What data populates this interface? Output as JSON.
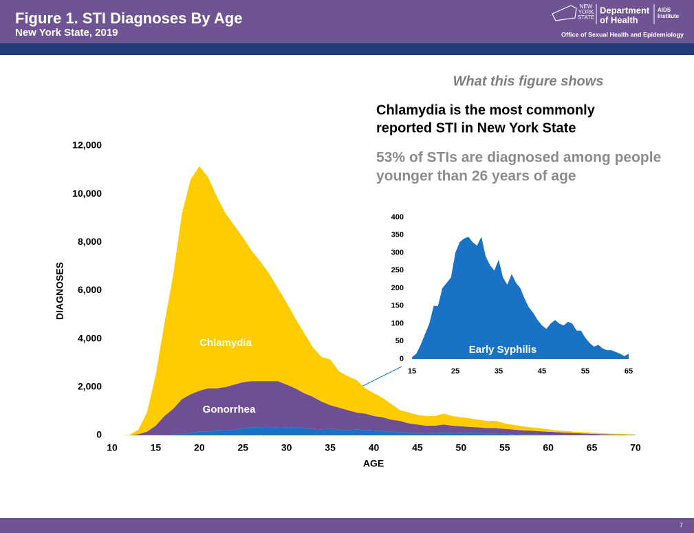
{
  "header": {
    "title": "Figure 1. STI Diagnoses By Age",
    "subtitle": "New York State, 2019",
    "logo": {
      "state": [
        "NEW",
        "YORK",
        "STATE"
      ],
      "department": [
        "Department",
        "of Health"
      ],
      "institute": [
        "AIDS",
        "Institute"
      ],
      "office": "Office of Sexual Health and Epidemiology"
    }
  },
  "sidebar": {
    "heading": "What this figure shows",
    "finding": [
      "Chlamydia is the most commonly",
      "reported STI in New York State"
    ],
    "note": [
      "53% of STIs are diagnosed among people",
      "younger than 26 years of age"
    ]
  },
  "page_number": "7",
  "chart_data": [
    {
      "type": "area",
      "stacked": true,
      "xlabel": "AGE",
      "ylabel": "DIAGNOSES",
      "x": [
        10,
        11,
        12,
        13,
        14,
        15,
        16,
        17,
        18,
        19,
        20,
        21,
        22,
        23,
        24,
        25,
        26,
        27,
        28,
        29,
        30,
        31,
        32,
        33,
        34,
        35,
        36,
        37,
        38,
        39,
        40,
        41,
        42,
        43,
        44,
        45,
        46,
        47,
        48,
        49,
        50,
        51,
        52,
        53,
        54,
        55,
        56,
        57,
        58,
        59,
        60,
        61,
        62,
        63,
        64,
        65,
        66,
        67,
        68,
        69,
        70
      ],
      "xlim": [
        10,
        70
      ],
      "xticks": [
        10,
        15,
        20,
        25,
        30,
        35,
        40,
        45,
        50,
        55,
        60,
        65,
        70
      ],
      "ylim": [
        0,
        12000
      ],
      "yticks": [
        0,
        {
          "value": 2000,
          "label": "2,000"
        },
        {
          "value": 4000,
          "label": "4,000"
        },
        {
          "value": 6000,
          "label": "6,000"
        },
        {
          "value": 8000,
          "label": "8,000"
        },
        {
          "value": 10000,
          "label": "10,000"
        },
        {
          "value": 12000,
          "label": "12,000"
        }
      ],
      "series": [
        {
          "color": "#1a72c6",
          "values": [
            0,
            0,
            0,
            0,
            2,
            5,
            15,
            40,
            70,
            100,
            150,
            150,
            200,
            215,
            230,
            300,
            330,
            340,
            345,
            330,
            320,
            345,
            290,
            265,
            250,
            280,
            230,
            210,
            240,
            215,
            200,
            170,
            145,
            130,
            110,
            95,
            85,
            100,
            110,
            100,
            95,
            105,
            100,
            80,
            80,
            60,
            45,
            35,
            40,
            30,
            25,
            25,
            20,
            15,
            8,
            15,
            10,
            8,
            6,
            5,
            4
          ]
        },
        {
          "name": "Gonorrhea",
          "color": "#6e4e94",
          "values": [
            0,
            0,
            0,
            50,
            148,
            395,
            785,
            1060,
            1430,
            1600,
            1700,
            1800,
            1750,
            1785,
            1870,
            1900,
            1920,
            1910,
            1905,
            1920,
            1780,
            1605,
            1460,
            1335,
            1150,
            970,
            920,
            840,
            710,
            685,
            600,
            580,
            505,
            470,
            390,
            355,
            315,
            300,
            340,
            300,
            285,
            245,
            230,
            220,
            220,
            210,
            195,
            175,
            150,
            140,
            125,
            105,
            90,
            75,
            72,
            45,
            40,
            32,
            24,
            20,
            16
          ]
        },
        {
          "name": "Chlamydia",
          "color": "#ffcc00",
          "values": [
            0,
            0,
            20,
            180,
            800,
            2100,
            3850,
            5550,
            7700,
            8900,
            9300,
            8750,
            7950,
            7200,
            6600,
            6000,
            5400,
            4950,
            4450,
            3850,
            3400,
            2900,
            2500,
            2050,
            1850,
            1900,
            1500,
            1400,
            1350,
            1050,
            950,
            800,
            650,
            450,
            450,
            400,
            400,
            400,
            450,
            400,
            370,
            350,
            320,
            300,
            300,
            230,
            190,
            170,
            140,
            130,
            100,
            70,
            70,
            60,
            50,
            50,
            40,
            30,
            30,
            25,
            20
          ]
        }
      ]
    },
    {
      "type": "area",
      "stacked": false,
      "x": [
        15,
        16,
        17,
        18,
        19,
        20,
        21,
        22,
        23,
        24,
        25,
        26,
        27,
        28,
        29,
        30,
        31,
        32,
        33,
        34,
        35,
        36,
        37,
        38,
        39,
        40,
        41,
        42,
        43,
        44,
        45,
        46,
        47,
        48,
        49,
        50,
        51,
        52,
        53,
        54,
        55,
        56,
        57,
        58,
        59,
        60,
        61,
        62,
        63,
        64,
        65
      ],
      "xlim": [
        15,
        65
      ],
      "xticks": [
        15,
        25,
        35,
        45,
        55,
        65
      ],
      "ylim": [
        0,
        400
      ],
      "yticks": [
        0,
        50,
        100,
        150,
        200,
        250,
        300,
        350,
        400
      ],
      "series": [
        {
          "name": "Early Syphilis",
          "color": "#1a72c6",
          "values": [
            5,
            15,
            40,
            70,
            100,
            150,
            150,
            200,
            215,
            230,
            300,
            330,
            340,
            345,
            330,
            320,
            345,
            290,
            265,
            250,
            280,
            230,
            210,
            240,
            215,
            200,
            170,
            145,
            130,
            110,
            95,
            85,
            100,
            110,
            100,
            95,
            105,
            100,
            80,
            80,
            60,
            45,
            35,
            40,
            30,
            25,
            25,
            20,
            15,
            8,
            15
          ]
        }
      ]
    }
  ]
}
